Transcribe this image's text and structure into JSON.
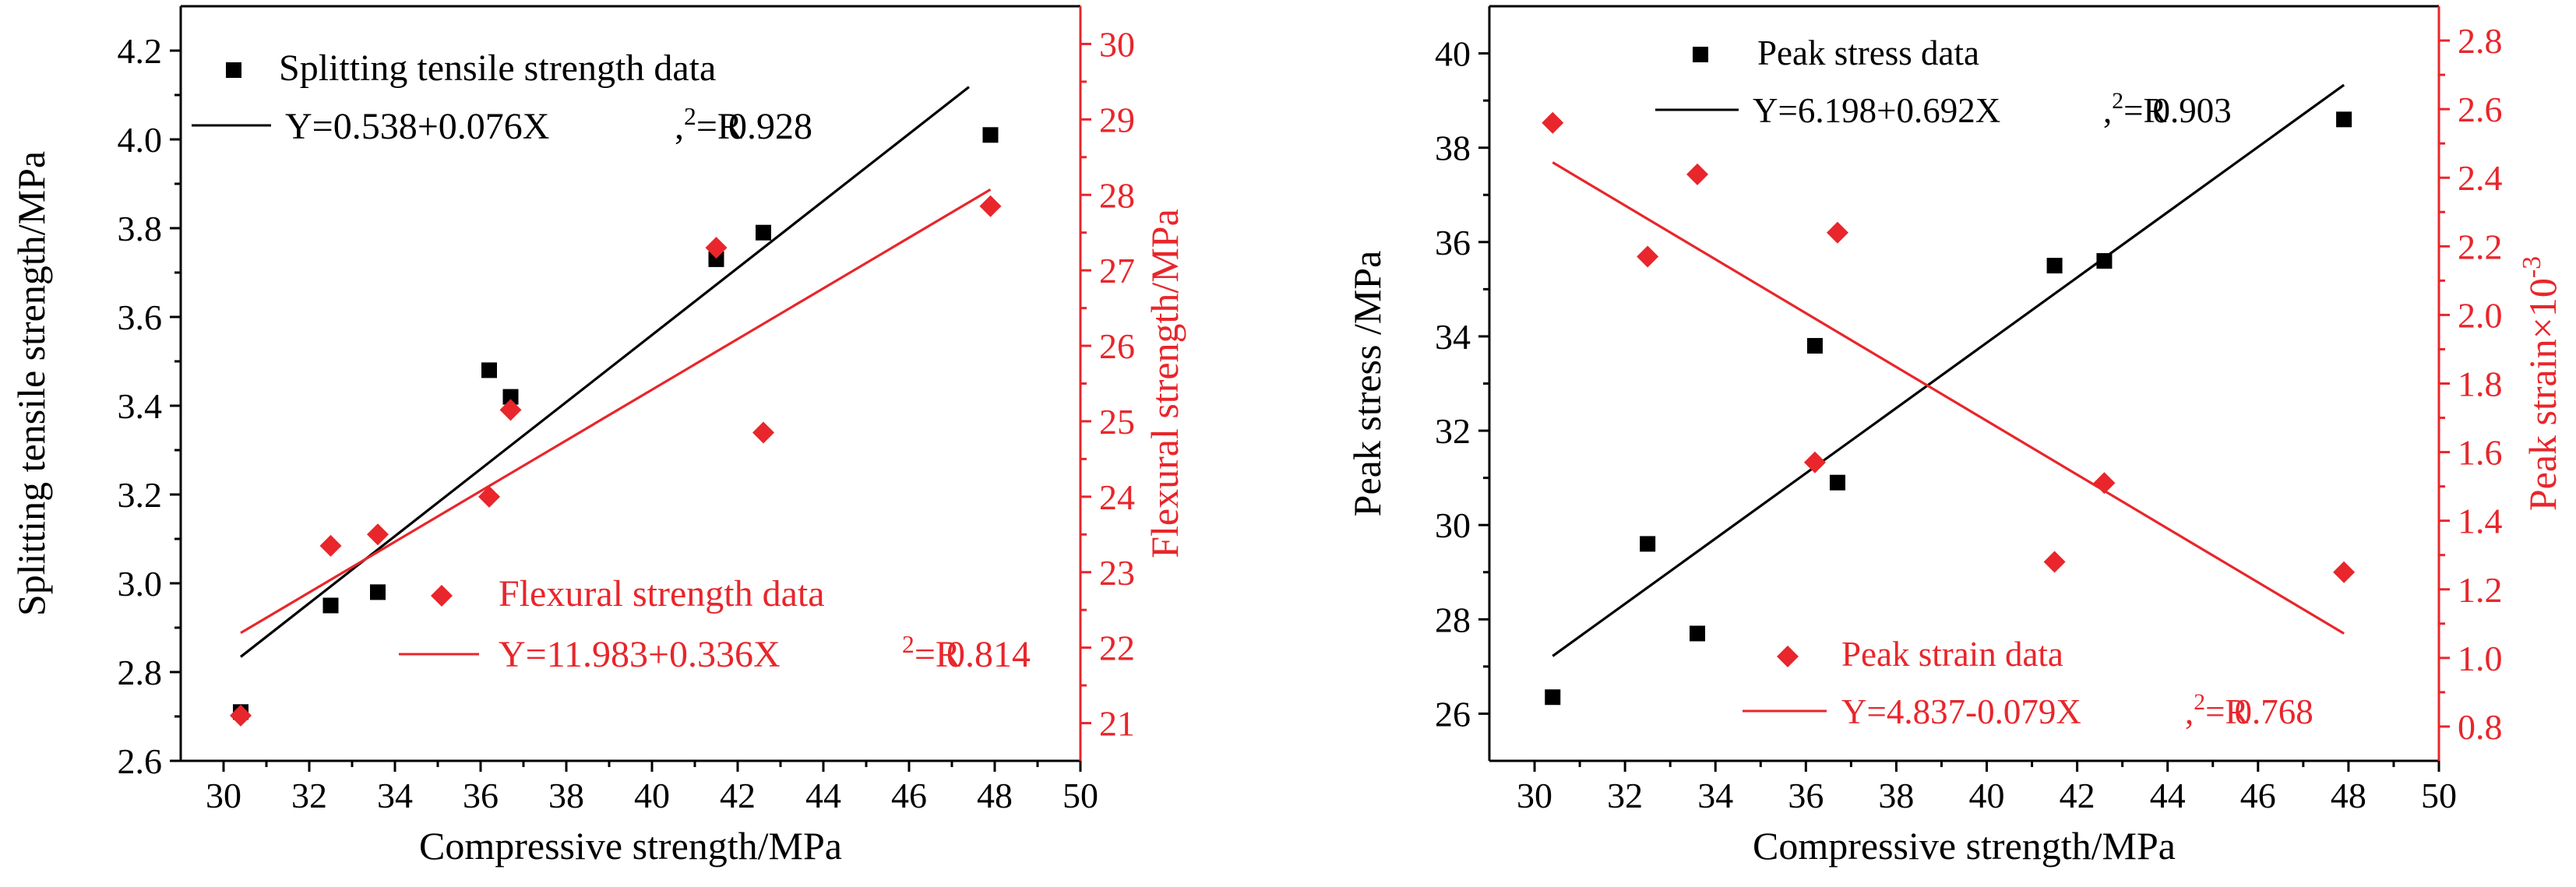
{
  "colors": {
    "black": "#000000",
    "red": "#e8262b"
  },
  "chart_data": [
    {
      "type": "scatter",
      "xlabel": "Compressive strength/MPa",
      "ylabel": "Splitting tensile strength/MPa",
      "ylabel_right": "Flexural strength/MPa",
      "xlim": [
        29,
        50
      ],
      "ylim": [
        2.6,
        4.3
      ],
      "ylim_right": [
        20.5,
        30.5
      ],
      "x_ticks": [
        "30",
        "32",
        "34",
        "36",
        "38",
        "40",
        "42",
        "44",
        "46",
        "48",
        "50"
      ],
      "y_ticks": [
        "2.6",
        "2.8",
        "3.0",
        "3.2",
        "3.4",
        "3.6",
        "3.8",
        "4.0",
        "4.2"
      ],
      "y_ticks_right": [
        "21",
        "22",
        "23",
        "24",
        "25",
        "26",
        "27",
        "28",
        "29",
        "30"
      ],
      "series": [
        {
          "name": "Splitting tensile strength data",
          "axis": "left",
          "marker": "square",
          "color": "#000000",
          "x": [
            30.4,
            32.5,
            33.6,
            36.2,
            36.7,
            41.5,
            42.6,
            47.9
          ],
          "y": [
            2.71,
            2.95,
            2.98,
            3.48,
            3.42,
            3.73,
            3.79,
            4.01
          ],
          "fit": {
            "label": "Y=0.538+0.076X",
            "r2_prefix": ",",
            "r2_sup": "2",
            "r2_text": "=R",
            "r2_value": "0.928",
            "x_range": [
              30.4,
              47.9
            ]
          }
        },
        {
          "name": "Flexural strength data",
          "axis": "right",
          "marker": "diamond",
          "color": "#e8262b",
          "x": [
            30.4,
            32.5,
            33.6,
            36.2,
            36.7,
            41.5,
            42.6,
            47.9
          ],
          "y": [
            21.1,
            23.35,
            23.5,
            24.0,
            25.15,
            27.3,
            24.85,
            27.85
          ],
          "fit": {
            "label": "Y=11.983+0.336X",
            "r2_prefix": "",
            "r2_sup": "2",
            "r2_text": "=R",
            "r2_value": "0.814",
            "x_range": [
              30.4,
              47.9
            ]
          }
        }
      ]
    },
    {
      "type": "scatter",
      "xlabel": "Compressive strength/MPa",
      "ylabel": "Peak stress /MPa",
      "ylabel_right": "Peak strain×10",
      "ylabel_right_sup": "-3",
      "xlim": [
        29,
        50
      ],
      "ylim": [
        25,
        41
      ],
      "ylim_right": [
        0.7,
        2.9
      ],
      "x_ticks": [
        "30",
        "32",
        "34",
        "36",
        "38",
        "40",
        "42",
        "44",
        "46",
        "48",
        "50"
      ],
      "y_ticks": [
        "26",
        "28",
        "30",
        "32",
        "34",
        "36",
        "38",
        "40"
      ],
      "y_ticks_right": [
        "0.8",
        "1.0",
        "1.2",
        "1.4",
        "1.6",
        "1.8",
        "2.0",
        "2.2",
        "2.4",
        "2.6",
        "2.8"
      ],
      "series": [
        {
          "name": "Peak stress data",
          "axis": "left",
          "marker": "square",
          "color": "#000000",
          "x": [
            30.4,
            32.5,
            33.6,
            36.2,
            36.7,
            41.5,
            42.6,
            47.9
          ],
          "y": [
            26.35,
            29.6,
            27.7,
            33.8,
            30.9,
            35.5,
            35.6,
            38.6
          ],
          "fit": {
            "label": "Y=6.198+0.692X",
            "r2_prefix": ",",
            "r2_sup": "2",
            "r2_text": "=R",
            "r2_value": "0.903",
            "x_range": [
              30.4,
              47.9
            ]
          }
        },
        {
          "name": "Peak strain data",
          "axis": "right",
          "marker": "diamond",
          "color": "#e8262b",
          "x": [
            30.4,
            32.5,
            33.6,
            36.2,
            36.7,
            41.5,
            42.6,
            47.9
          ],
          "y": [
            2.56,
            2.17,
            2.41,
            1.57,
            2.24,
            1.28,
            1.51,
            1.25
          ],
          "fit": {
            "label": "Y=4.837-0.079X",
            "r2_prefix": ",",
            "r2_sup": "2",
            "r2_text": "=R",
            "r2_value": "0.768",
            "x_range": [
              30.4,
              47.9
            ]
          }
        }
      ]
    }
  ]
}
